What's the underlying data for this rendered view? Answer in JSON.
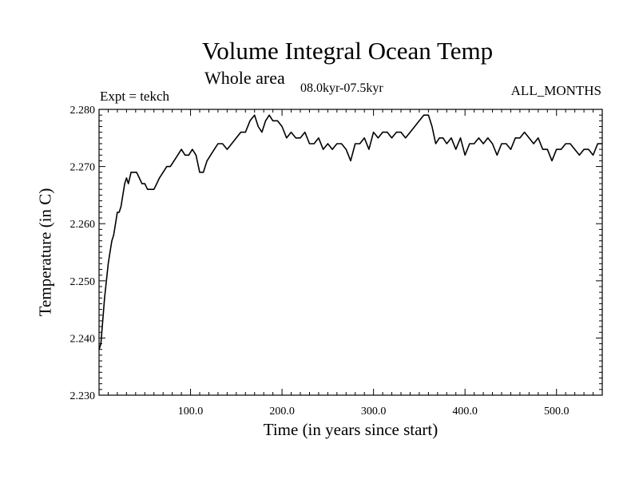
{
  "chart_data": {
    "type": "line",
    "title": "Volume Integral Ocean Temp",
    "subtitle": "Whole area",
    "period": "08.0kyr-07.5kyr",
    "experiment_label": "Expt = tekch",
    "months_label": "ALL_MONTHS",
    "xlabel": "Time (in years since start)",
    "ylabel": "Temperature (in C)",
    "xlim": [
      0,
      550
    ],
    "ylim": [
      2.23,
      2.28
    ],
    "x_ticks": [
      100,
      200,
      300,
      400,
      500
    ],
    "x_tick_labels": [
      "100.0",
      "200.0",
      "300.0",
      "400.0",
      "500.0"
    ],
    "y_ticks": [
      2.23,
      2.24,
      2.25,
      2.26,
      2.27,
      2.28
    ],
    "y_tick_labels": [
      "2.230",
      "2.240",
      "2.250",
      "2.260",
      "2.270",
      "2.280"
    ],
    "grid": false,
    "series": [
      {
        "name": "Volume integral ocean temperature",
        "color": "#000000",
        "x": [
          0,
          2,
          4,
          6,
          8,
          10,
          12,
          14,
          16,
          18,
          20,
          22,
          24,
          26,
          28,
          30,
          32,
          35,
          38,
          41,
          44,
          47,
          50,
          53,
          56,
          60,
          63,
          66,
          70,
          74,
          78,
          82,
          86,
          90,
          94,
          98,
          102,
          106,
          110,
          114,
          118,
          122,
          126,
          130,
          135,
          140,
          145,
          150,
          155,
          160,
          165,
          170,
          174,
          178,
          182,
          186,
          190,
          195,
          200,
          205,
          210,
          215,
          220,
          225,
          230,
          235,
          240,
          245,
          250,
          255,
          260,
          265,
          270,
          275,
          280,
          285,
          290,
          295,
          300,
          305,
          310,
          315,
          320,
          325,
          330,
          335,
          340,
          345,
          350,
          355,
          360,
          364,
          368,
          372,
          376,
          380,
          385,
          390,
          395,
          400,
          405,
          410,
          415,
          420,
          425,
          430,
          435,
          440,
          445,
          450,
          455,
          460,
          465,
          470,
          475,
          480,
          485,
          490,
          495,
          500,
          505,
          510,
          515,
          520,
          525,
          530,
          535,
          540,
          545,
          550
        ],
        "values": [
          2.238,
          2.239,
          2.243,
          2.247,
          2.25,
          2.253,
          2.255,
          2.257,
          2.258,
          2.26,
          2.262,
          2.262,
          2.263,
          2.265,
          2.267,
          2.268,
          2.267,
          2.269,
          2.269,
          2.269,
          2.268,
          2.267,
          2.267,
          2.266,
          2.266,
          2.266,
          2.267,
          2.268,
          2.269,
          2.27,
          2.27,
          2.271,
          2.272,
          2.273,
          2.272,
          2.272,
          2.273,
          2.272,
          2.269,
          2.269,
          2.271,
          2.272,
          2.273,
          2.274,
          2.274,
          2.273,
          2.274,
          2.275,
          2.276,
          2.276,
          2.278,
          2.279,
          2.277,
          2.276,
          2.278,
          2.279,
          2.278,
          2.278,
          2.277,
          2.275,
          2.276,
          2.275,
          2.275,
          2.276,
          2.274,
          2.274,
          2.275,
          2.273,
          2.274,
          2.273,
          2.274,
          2.274,
          2.273,
          2.271,
          2.274,
          2.274,
          2.275,
          2.273,
          2.276,
          2.275,
          2.276,
          2.276,
          2.275,
          2.276,
          2.276,
          2.275,
          2.276,
          2.277,
          2.278,
          2.279,
          2.279,
          2.277,
          2.274,
          2.275,
          2.275,
          2.274,
          2.275,
          2.273,
          2.275,
          2.272,
          2.274,
          2.274,
          2.275,
          2.274,
          2.275,
          2.274,
          2.272,
          2.274,
          2.274,
          2.273,
          2.275,
          2.275,
          2.276,
          2.275,
          2.274,
          2.275,
          2.273,
          2.273,
          2.271,
          2.273,
          2.273,
          2.274,
          2.274,
          2.273,
          2.272,
          2.273,
          2.273,
          2.272,
          2.274,
          2.274
        ]
      }
    ]
  }
}
